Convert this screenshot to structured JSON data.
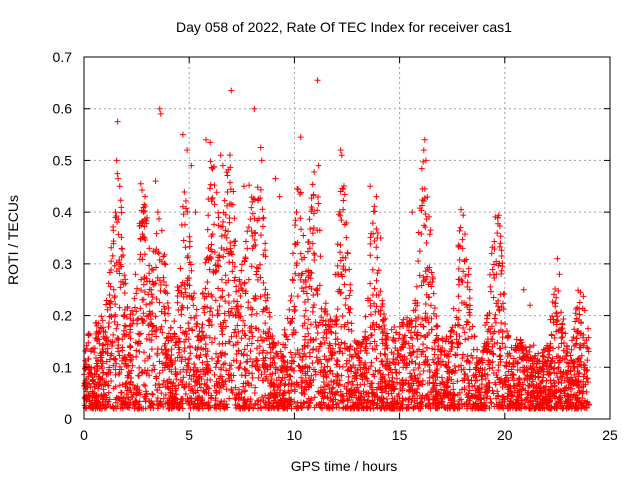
{
  "chart_data": {
    "type": "scatter",
    "title": "Day 058 of 2022, Rate Of TEC Index for receiver cas1",
    "xlabel": "GPS time / hours",
    "ylabel": "ROTI / TECUs",
    "xlim": [
      0,
      25
    ],
    "ylim": [
      0,
      0.7
    ],
    "xticks": [
      0,
      5,
      10,
      15,
      20,
      25
    ],
    "xtick_labels": [
      "0",
      "5",
      "10",
      "15",
      "20",
      "25"
    ],
    "yticks": [
      0,
      0.1,
      0.2,
      0.3,
      0.4,
      0.5,
      0.6,
      0.7
    ],
    "ytick_labels": [
      "0",
      "0.1",
      "0.2",
      "0.3",
      "0.4",
      "0.5",
      "0.6",
      "0.7"
    ],
    "grid": true,
    "marker": "+",
    "series": [
      {
        "name": "ROTI",
        "color": "#ff0000",
        "points": [
          [
            1.6,
            0.575
          ],
          [
            1.55,
            0.5
          ],
          [
            1.7,
            0.45
          ],
          [
            1.5,
            0.4
          ],
          [
            2.7,
            0.455
          ],
          [
            2.9,
            0.43
          ],
          [
            3.4,
            0.46
          ],
          [
            3.6,
            0.6
          ],
          [
            3.65,
            0.59
          ],
          [
            4.7,
            0.55
          ],
          [
            4.9,
            0.52
          ],
          [
            5.1,
            0.49
          ],
          [
            5.3,
            0.4
          ],
          [
            5.8,
            0.54
          ],
          [
            6.0,
            0.535
          ],
          [
            6.5,
            0.51
          ],
          [
            6.6,
            0.49
          ],
          [
            7.0,
            0.635
          ],
          [
            7.1,
            0.44
          ],
          [
            7.6,
            0.45
          ],
          [
            8.1,
            0.6
          ],
          [
            8.4,
            0.525
          ],
          [
            8.45,
            0.5
          ],
          [
            9.1,
            0.465
          ],
          [
            9.3,
            0.43
          ],
          [
            10.3,
            0.545
          ],
          [
            10.1,
            0.4
          ],
          [
            11.1,
            0.655
          ],
          [
            11.15,
            0.49
          ],
          [
            12.2,
            0.52
          ],
          [
            12.25,
            0.51
          ],
          [
            12.2,
            0.44
          ],
          [
            13.6,
            0.45
          ],
          [
            13.9,
            0.43
          ],
          [
            14.1,
            0.35
          ],
          [
            15.6,
            0.4
          ],
          [
            16.2,
            0.54
          ],
          [
            16.15,
            0.52
          ],
          [
            16.25,
            0.5
          ],
          [
            16.2,
            0.445
          ],
          [
            17.9,
            0.37
          ],
          [
            18.0,
            0.33
          ],
          [
            19.6,
            0.28
          ],
          [
            20.9,
            0.25
          ],
          [
            21.2,
            0.22
          ],
          [
            22.5,
            0.31
          ],
          [
            22.6,
            0.28
          ],
          [
            23.6,
            0.245
          ],
          [
            23.8,
            0.21
          ]
        ]
      }
    ]
  }
}
